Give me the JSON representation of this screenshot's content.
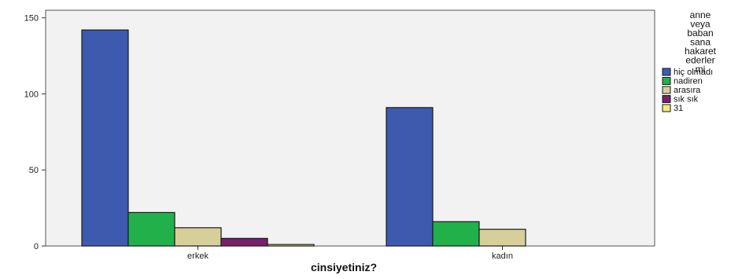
{
  "chart_data": {
    "type": "bar",
    "xlabel": "cinsiyetiniz?",
    "ylabel": "",
    "categories": [
      "erkek",
      "kadın"
    ],
    "ylim": [
      0,
      155
    ],
    "yticks": [
      0,
      50,
      100,
      150
    ],
    "grid": false,
    "legend_placement": "right",
    "legend_title": [
      "anne",
      "veya",
      "baban",
      "sana",
      "hakaret",
      "ederler",
      "mi"
    ],
    "series": [
      {
        "name": "hiç olmadı",
        "color": "#3d5aaf",
        "values": [
          142,
          91
        ]
      },
      {
        "name": "nadiren",
        "color": "#22b04b",
        "values": [
          22,
          16
        ]
      },
      {
        "name": "arasıra",
        "color": "#d6cf9a",
        "values": [
          12,
          11
        ]
      },
      {
        "name": "sık sık",
        "color": "#7a1f6b",
        "values": [
          5,
          0
        ]
      },
      {
        "name": "31",
        "color": "#f4ec7a",
        "values": [
          1,
          0
        ]
      }
    ],
    "plot_background": "#f2f2f2"
  }
}
